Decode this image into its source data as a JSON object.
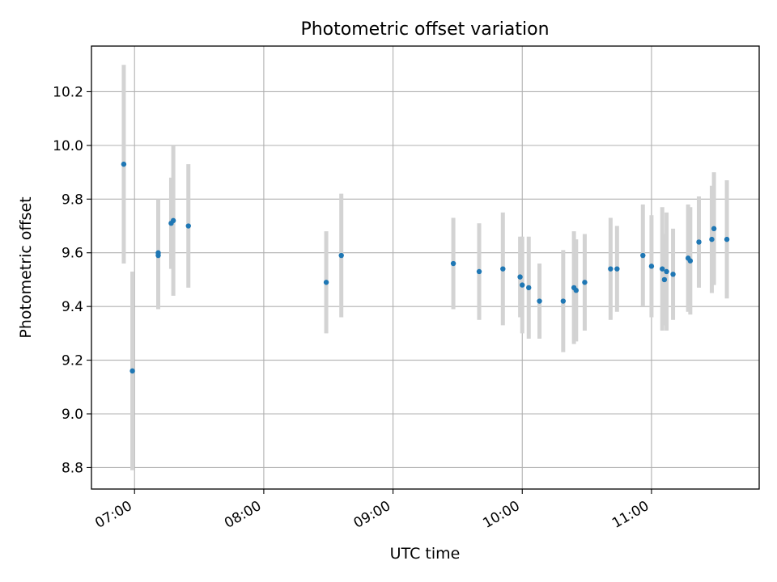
{
  "chart_data": {
    "type": "scatter",
    "title": "Photometric offset variation",
    "xlabel": "UTC time",
    "ylabel": "Photometric offset",
    "x_ticks": [
      "07:00",
      "08:00",
      "09:00",
      "10:00",
      "11:00"
    ],
    "y_ticks": [
      "8.8",
      "9.0",
      "9.2",
      "9.4",
      "9.6",
      "9.8",
      "10.0",
      "10.2"
    ],
    "xlim": [
      "06:40",
      "11:50"
    ],
    "ylim": [
      8.72,
      10.37
    ],
    "grid": true,
    "point_color": "#1f77b4",
    "errorbar_color": "#d3d3d3",
    "points": [
      {
        "x": "06:55",
        "y": 9.93,
        "err": 0.37
      },
      {
        "x": "06:59",
        "y": 9.16,
        "err": 0.37
      },
      {
        "x": "07:11",
        "y": 9.6,
        "err": 0.2
      },
      {
        "x": "07:11",
        "y": 9.59,
        "err": 0.2
      },
      {
        "x": "07:17",
        "y": 9.71,
        "err": 0.17
      },
      {
        "x": "07:18",
        "y": 9.72,
        "err": 0.28
      },
      {
        "x": "07:25",
        "y": 9.7,
        "err": 0.23
      },
      {
        "x": "08:29",
        "y": 9.49,
        "err": 0.19
      },
      {
        "x": "08:36",
        "y": 9.59,
        "err": 0.23
      },
      {
        "x": "09:28",
        "y": 9.56,
        "err": 0.17
      },
      {
        "x": "09:40",
        "y": 9.53,
        "err": 0.18
      },
      {
        "x": "09:51",
        "y": 9.54,
        "err": 0.21
      },
      {
        "x": "09:59",
        "y": 9.51,
        "err": 0.15
      },
      {
        "x": "10:00",
        "y": 9.48,
        "err": 0.18
      },
      {
        "x": "10:03",
        "y": 9.47,
        "err": 0.19
      },
      {
        "x": "10:08",
        "y": 9.42,
        "err": 0.14
      },
      {
        "x": "10:19",
        "y": 9.42,
        "err": 0.19
      },
      {
        "x": "10:24",
        "y": 9.47,
        "err": 0.21
      },
      {
        "x": "10:25",
        "y": 9.46,
        "err": 0.19
      },
      {
        "x": "10:29",
        "y": 9.49,
        "err": 0.18
      },
      {
        "x": "10:41",
        "y": 9.54,
        "err": 0.19
      },
      {
        "x": "10:44",
        "y": 9.54,
        "err": 0.16
      },
      {
        "x": "10:56",
        "y": 9.59,
        "err": 0.19
      },
      {
        "x": "11:00",
        "y": 9.55,
        "err": 0.19
      },
      {
        "x": "11:05",
        "y": 9.54,
        "err": 0.23
      },
      {
        "x": "11:06",
        "y": 9.5,
        "err": 0.17
      },
      {
        "x": "11:07",
        "y": 9.53,
        "err": 0.22
      },
      {
        "x": "11:10",
        "y": 9.52,
        "err": 0.17
      },
      {
        "x": "11:17",
        "y": 9.58,
        "err": 0.2
      },
      {
        "x": "11:18",
        "y": 9.57,
        "err": 0.2
      },
      {
        "x": "11:22",
        "y": 9.64,
        "err": 0.17
      },
      {
        "x": "11:28",
        "y": 9.65,
        "err": 0.2
      },
      {
        "x": "11:29",
        "y": 9.69,
        "err": 0.21
      },
      {
        "x": "11:35",
        "y": 9.65,
        "err": 0.22
      }
    ]
  }
}
